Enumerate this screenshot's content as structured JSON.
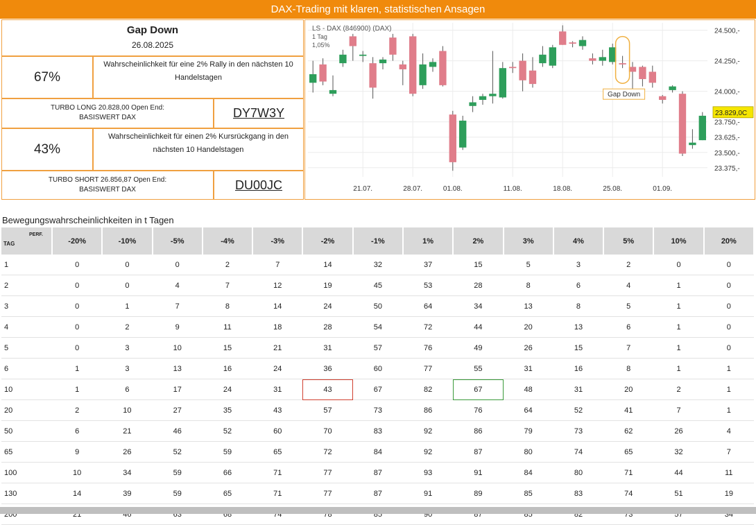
{
  "banner": "DAX-Trading mit klaren, statistischen Ansagen",
  "summary": {
    "title": "Gap Down",
    "date": "26.08.2025",
    "up_pct": "67%",
    "up_text": "Wahrscheinlichkeit für eine 2% Rally in den nächsten 10 Handelstagen",
    "turbo_long_line1": "TURBO LONG 20.828,00 Open End:",
    "turbo_long_line2": "BASISWERT DAX",
    "turbo_long_wkn": "DY7W3Y",
    "down_pct": "43%",
    "down_text": "Wahrscheinlichkeit für einen 2% Kursrückgang in den nächsten 10 Handelstagen",
    "turbo_short_line1": "TURBO SHORT 26.856,87 Open End:",
    "turbo_short_line2": "BASISWERT DAX",
    "turbo_short_wkn": "DU00JC"
  },
  "chart_data": {
    "type": "candlestick",
    "title": "LS - DAX (846900) (DAX)",
    "subtitle1": "1 Tag",
    "subtitle2": "1,05%",
    "ylim": [
      23300,
      24560
    ],
    "y_ticks": [
      "24.500,-",
      "24.250,-",
      "24.000,-",
      "23.750,-",
      "23.625,-",
      "23.500,-",
      "23.375,-"
    ],
    "y_tick_values": [
      24500,
      24250,
      24000,
      23750,
      23625,
      23500,
      23375
    ],
    "x_ticks": [
      "21.07.",
      "28.07.",
      "01.08.",
      "11.08.",
      "18.08.",
      "25.08.",
      "01.09."
    ],
    "x_tick_index": [
      5,
      10,
      14,
      20,
      25,
      30,
      35
    ],
    "last_price_label": "23.829,0C",
    "last_price": 23829,
    "annotation": "Gap Down",
    "annotation_index": 31,
    "up_color": "#2e9e5b",
    "down_color": "#e07d8a",
    "candles": [
      {
        "o": 24070,
        "h": 24250,
        "l": 23990,
        "c": 24140
      },
      {
        "o": 24220,
        "h": 24270,
        "l": 24050,
        "c": 24080
      },
      {
        "o": 23980,
        "h": 24130,
        "l": 23960,
        "c": 24010
      },
      {
        "o": 24230,
        "h": 24340,
        "l": 24200,
        "c": 24300
      },
      {
        "o": 24450,
        "h": 24470,
        "l": 24250,
        "c": 24370
      },
      {
        "o": 24290,
        "h": 24330,
        "l": 24240,
        "c": 24300
      },
      {
        "o": 24230,
        "h": 24280,
        "l": 23940,
        "c": 24030
      },
      {
        "o": 24230,
        "h": 24280,
        "l": 24180,
        "c": 24260
      },
      {
        "o": 24440,
        "h": 24470,
        "l": 24250,
        "c": 24300
      },
      {
        "o": 24220,
        "h": 24250,
        "l": 24050,
        "c": 24180
      },
      {
        "o": 24450,
        "h": 24470,
        "l": 23960,
        "c": 23980
      },
      {
        "o": 24050,
        "h": 24310,
        "l": 24020,
        "c": 24220
      },
      {
        "o": 24200,
        "h": 24270,
        "l": 24160,
        "c": 24240
      },
      {
        "o": 24330,
        "h": 24370,
        "l": 24040,
        "c": 24050
      },
      {
        "o": 23810,
        "h": 23840,
        "l": 23350,
        "c": 23420
      },
      {
        "o": 23540,
        "h": 23800,
        "l": 23520,
        "c": 23760
      },
      {
        "o": 23880,
        "h": 23960,
        "l": 23830,
        "c": 23910
      },
      {
        "o": 23930,
        "h": 23980,
        "l": 23890,
        "c": 23960
      },
      {
        "o": 23960,
        "h": 24330,
        "l": 23900,
        "c": 23980
      },
      {
        "o": 23950,
        "h": 24240,
        "l": 23940,
        "c": 24190
      },
      {
        "o": 24200,
        "h": 24240,
        "l": 24150,
        "c": 24190
      },
      {
        "o": 24250,
        "h": 24310,
        "l": 24000,
        "c": 24090
      },
      {
        "o": 24170,
        "h": 24280,
        "l": 24030,
        "c": 24060
      },
      {
        "o": 24230,
        "h": 24370,
        "l": 24200,
        "c": 24300
      },
      {
        "o": 24210,
        "h": 24380,
        "l": 24190,
        "c": 24360
      },
      {
        "o": 24490,
        "h": 24540,
        "l": 24380,
        "c": 24380
      },
      {
        "o": 24400,
        "h": 24410,
        "l": 24360,
        "c": 24390
      },
      {
        "o": 24370,
        "h": 24450,
        "l": 24340,
        "c": 24420
      },
      {
        "o": 24270,
        "h": 24310,
        "l": 24220,
        "c": 24250
      },
      {
        "o": 24250,
        "h": 24340,
        "l": 24210,
        "c": 24280
      },
      {
        "o": 24240,
        "h": 24390,
        "l": 24220,
        "c": 24360
      },
      {
        "o": 24230,
        "h": 24290,
        "l": 24190,
        "c": 24220
      },
      {
        "o": 24200,
        "h": 24240,
        "l": 24010,
        "c": 24160
      },
      {
        "o": 24200,
        "h": 24210,
        "l": 24040,
        "c": 24100
      },
      {
        "o": 24160,
        "h": 24210,
        "l": 24030,
        "c": 24070
      },
      {
        "o": 23960,
        "h": 23970,
        "l": 23900,
        "c": 23930
      },
      {
        "o": 24010,
        "h": 24050,
        "l": 23990,
        "c": 24040
      },
      {
        "o": 23980,
        "h": 24000,
        "l": 23470,
        "c": 23490
      },
      {
        "o": 23560,
        "h": 23690,
        "l": 23530,
        "c": 23580
      },
      {
        "o": 23600,
        "h": 23830,
        "l": 23600,
        "c": 23800
      }
    ]
  },
  "table": {
    "caption": "Bewegungswahrscheinlichkeiten in t Tagen",
    "corner_perf": "PERF.",
    "corner_tag": "TAG",
    "headers": [
      "-20%",
      "-10%",
      "-5%",
      "-4%",
      "-3%",
      "-2%",
      "-1%",
      "1%",
      "2%",
      "3%",
      "4%",
      "5%",
      "10%",
      "20%"
    ],
    "rows": [
      {
        "tag": "1",
        "values": [
          "0",
          "0",
          "0",
          "2",
          "7",
          "14",
          "32",
          "37",
          "15",
          "5",
          "3",
          "2",
          "0",
          "0"
        ]
      },
      {
        "tag": "2",
        "values": [
          "0",
          "0",
          "4",
          "7",
          "12",
          "19",
          "45",
          "53",
          "28",
          "8",
          "6",
          "4",
          "1",
          "0"
        ]
      },
      {
        "tag": "3",
        "values": [
          "0",
          "1",
          "7",
          "8",
          "14",
          "24",
          "50",
          "64",
          "34",
          "13",
          "8",
          "5",
          "1",
          "0"
        ]
      },
      {
        "tag": "4",
        "values": [
          "0",
          "2",
          "9",
          "11",
          "18",
          "28",
          "54",
          "72",
          "44",
          "20",
          "13",
          "6",
          "1",
          "0"
        ]
      },
      {
        "tag": "5",
        "values": [
          "0",
          "3",
          "10",
          "15",
          "21",
          "31",
          "57",
          "76",
          "49",
          "26",
          "15",
          "7",
          "1",
          "0"
        ]
      },
      {
        "tag": "6",
        "values": [
          "1",
          "3",
          "13",
          "16",
          "24",
          "36",
          "60",
          "77",
          "55",
          "31",
          "16",
          "8",
          "1",
          "1"
        ]
      },
      {
        "tag": "10",
        "values": [
          "1",
          "6",
          "17",
          "24",
          "31",
          "43",
          "67",
          "82",
          "67",
          "48",
          "31",
          "20",
          "2",
          "1"
        ]
      },
      {
        "tag": "20",
        "values": [
          "2",
          "10",
          "27",
          "35",
          "43",
          "57",
          "73",
          "86",
          "76",
          "64",
          "52",
          "41",
          "7",
          "1"
        ]
      },
      {
        "tag": "50",
        "values": [
          "6",
          "21",
          "46",
          "52",
          "60",
          "70",
          "83",
          "92",
          "86",
          "79",
          "73",
          "62",
          "26",
          "4"
        ]
      },
      {
        "tag": "65",
        "values": [
          "9",
          "26",
          "52",
          "59",
          "65",
          "72",
          "84",
          "92",
          "87",
          "80",
          "74",
          "65",
          "32",
          "7"
        ]
      },
      {
        "tag": "100",
        "values": [
          "10",
          "34",
          "59",
          "66",
          "71",
          "77",
          "87",
          "93",
          "91",
          "84",
          "80",
          "71",
          "44",
          "11"
        ]
      },
      {
        "tag": "130",
        "values": [
          "14",
          "39",
          "59",
          "65",
          "71",
          "77",
          "87",
          "91",
          "89",
          "85",
          "83",
          "74",
          "51",
          "19"
        ]
      },
      {
        "tag": "200",
        "values": [
          "21",
          "46",
          "63",
          "68",
          "74",
          "78",
          "85",
          "90",
          "87",
          "85",
          "82",
          "73",
          "57",
          "34"
        ]
      }
    ]
  }
}
